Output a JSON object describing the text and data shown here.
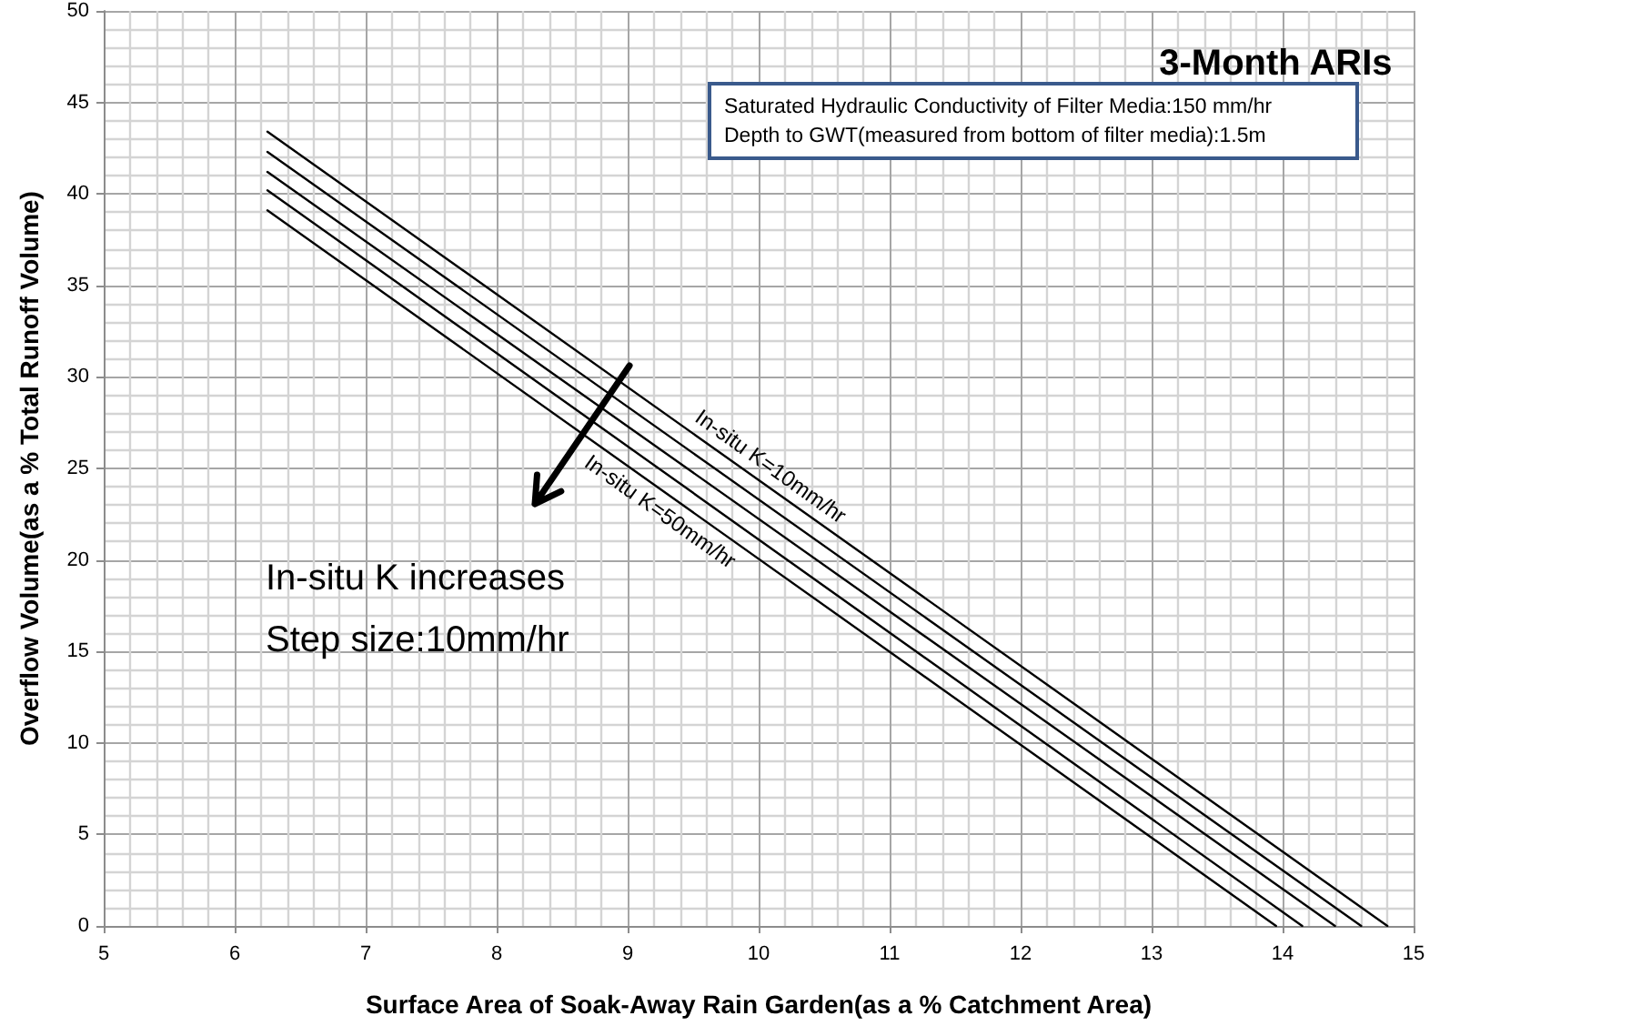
{
  "chart_data": {
    "type": "line",
    "title": "3-Month ARIs",
    "xlabel": "Surface Area of Soak-Away Rain Garden(as a % Catchment Area)",
    "ylabel": "Overflow Volume(as a % Total Runoff Volume)",
    "annotations": [
      "Saturated Hydraulic Conductivity of Filter Media:150 mm/hr",
      "Depth to GWT(measured from bottom of filter media):1.5m",
      "In-situ K increases",
      "Step size:10mm/hr"
    ],
    "series": [
      {
        "name": "In-situ K=10mm/hr",
        "color": "#000000",
        "x": [
          6.25,
          14.8
        ],
        "values": [
          43.4,
          0
        ]
      },
      {
        "color": "#000000",
        "x": [
          6.25,
          14.6
        ],
        "values": [
          42.3,
          0
        ]
      },
      {
        "color": "#000000",
        "x": [
          6.25,
          14.4
        ],
        "values": [
          41.2,
          0
        ]
      },
      {
        "color": "#000000",
        "x": [
          6.25,
          14.15
        ],
        "values": [
          40.2,
          0
        ]
      },
      {
        "name": "In-situ K=50mm/hr",
        "color": "#000000",
        "x": [
          6.25,
          13.95
        ],
        "values": [
          39.1,
          0
        ]
      }
    ],
    "xlim": [
      5,
      15
    ],
    "xticks": [
      5,
      6,
      7,
      8,
      9,
      10,
      11,
      12,
      13,
      14,
      15
    ],
    "ylim": [
      0,
      50
    ],
    "yticks": [
      0,
      5,
      10,
      15,
      20,
      25,
      30,
      35,
      40,
      45,
      50
    ],
    "grid": true,
    "marker": "none",
    "line_style": "solid"
  }
}
